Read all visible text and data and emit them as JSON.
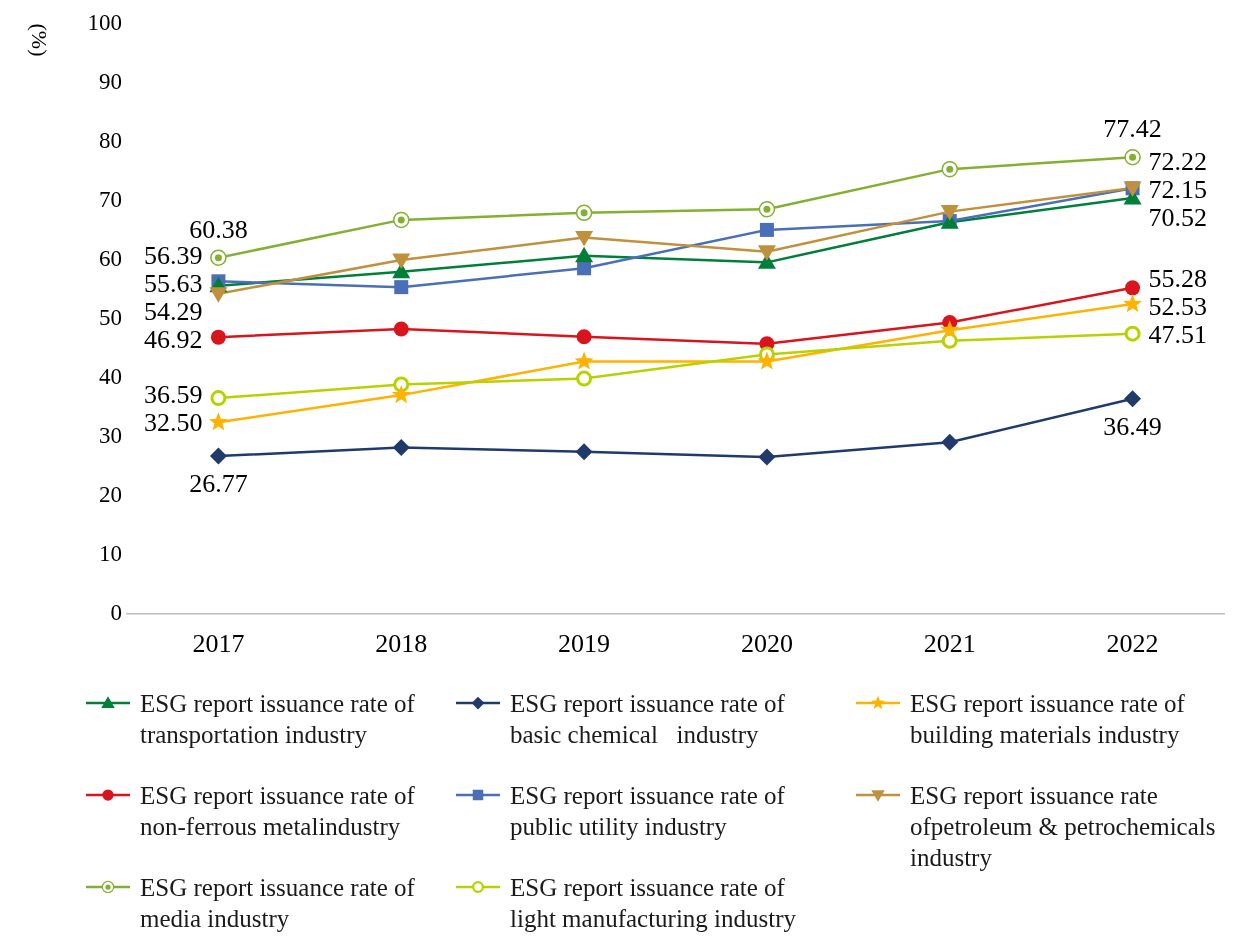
{
  "chart_data": {
    "type": "line",
    "ylabel": "(%)",
    "categories": [
      "2017",
      "2018",
      "2019",
      "2020",
      "2021",
      "2022"
    ],
    "ylim": [
      0,
      100
    ],
    "yticks": [
      0,
      10,
      20,
      30,
      40,
      50,
      60,
      70,
      80,
      90,
      100
    ],
    "legend": "bottom",
    "series": [
      {
        "name": "ESG report issuance rate of transportation industry",
        "color": "#007f3b",
        "marker": "triangle",
        "values": [
          55.63,
          58,
          60.7,
          59.6,
          66.4,
          70.52
        ],
        "value_labels": [
          "55.63",
          null,
          null,
          null,
          null,
          "70.52"
        ]
      },
      {
        "name": "ESG report issuance rate of basic chemical   industry",
        "color": "#1f3a6b",
        "marker": "diamond",
        "values": [
          26.77,
          28.2,
          27.5,
          26.6,
          29.1,
          36.49
        ],
        "value_labels": [
          "26.77",
          null,
          null,
          null,
          null,
          "36.49"
        ]
      },
      {
        "name": "ESG report issuance rate of building materials industry",
        "color": "#ffb300",
        "marker": "star",
        "values": [
          32.5,
          37.1,
          42.8,
          42.8,
          48.1,
          52.53
        ],
        "value_labels": [
          "32.50",
          null,
          null,
          null,
          null,
          "52.53"
        ]
      },
      {
        "name": "ESG report issuance rate of non-ferrous metalindustry",
        "color": "#d9141c",
        "marker": "circle",
        "values": [
          46.92,
          48.3,
          47,
          45.8,
          49.4,
          55.28
        ],
        "value_labels": [
          "46.92",
          null,
          null,
          null,
          null,
          "55.28"
        ]
      },
      {
        "name": "ESG report issuance rate of public utility industry",
        "color": "#4a6fb8",
        "marker": "square",
        "values": [
          56.39,
          55.4,
          58.6,
          65.1,
          66.6,
          72.15
        ],
        "value_labels": [
          "56.39",
          null,
          null,
          null,
          null,
          "72.15"
        ]
      },
      {
        "name": "ESG report issuance rate ofpetroleum & petrochemicals industry",
        "color": "#c0913c",
        "marker": "triangle-down",
        "values": [
          54.29,
          60,
          63.8,
          61.4,
          68.2,
          72.22
        ],
        "value_labels": [
          "54.29",
          null,
          null,
          null,
          null,
          "72.22"
        ]
      },
      {
        "name": "ESG report issuance rate of media industry",
        "color": "#83b030",
        "marker": "circle-dot",
        "values": [
          60.38,
          66.8,
          68,
          68.6,
          75.4,
          77.42
        ],
        "value_labels": [
          "60.38",
          null,
          null,
          null,
          null,
          "77.42"
        ]
      },
      {
        "name": "ESG report issuance rate of light manufacturing industry",
        "color": "#b8d200",
        "marker": "circle-open",
        "values": [
          36.59,
          38.9,
          39.9,
          44,
          46.3,
          47.51
        ],
        "value_labels": [
          "36.59",
          null,
          null,
          null,
          null,
          "47.51"
        ]
      }
    ]
  }
}
